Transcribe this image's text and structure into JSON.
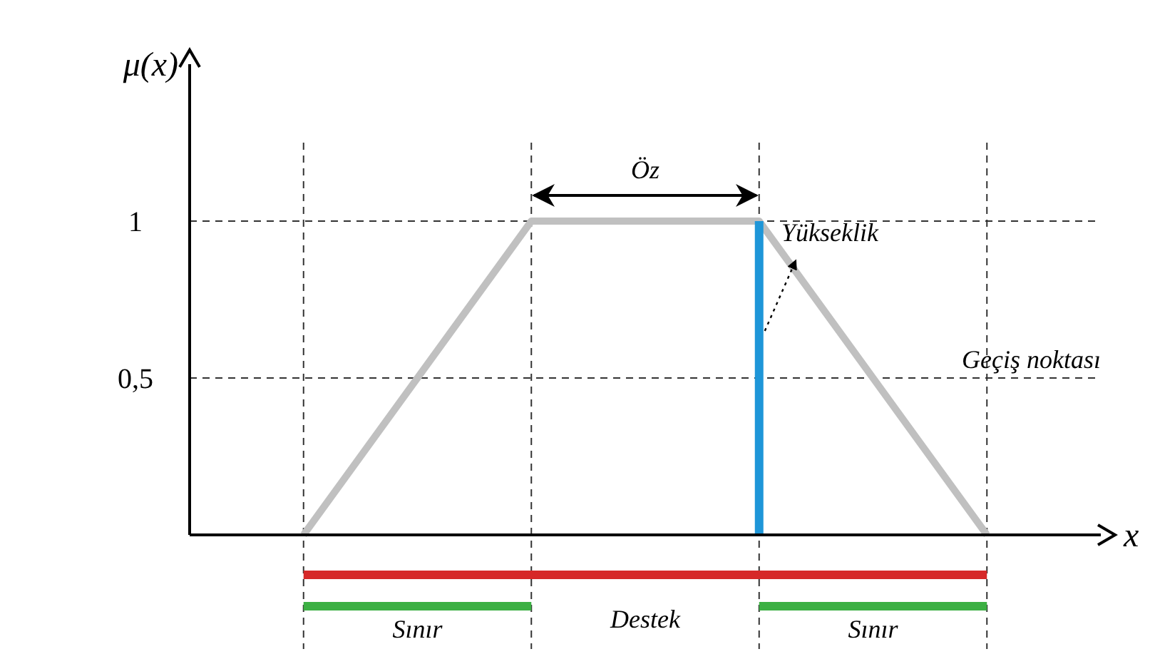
{
  "chart_data": {
    "type": "line",
    "xlabel": "x",
    "ylabel": "μ(x)",
    "categories": [
      null,
      null,
      null,
      null
    ],
    "series": [
      {
        "color": "#c0c0c0",
        "values": [
          0,
          1,
          1,
          0
        ]
      },
      {
        "type": "bar",
        "color": "#1e96d8",
        "values": [
          null,
          null,
          1,
          null
        ]
      }
    ],
    "ylim": [
      0,
      1.5
    ],
    "yticks": [
      {
        "value": 0.5,
        "label": "0,5"
      },
      {
        "value": 1,
        "label": "1"
      }
    ],
    "grid": "x",
    "ref_lines": [
      {
        "axis": "y",
        "value": 1,
        "line_style": "dashed"
      },
      {
        "axis": "y",
        "value": 0.5,
        "label": "Geçiş noktası",
        "line_style": "dashed"
      }
    ],
    "annotations": [
      "Öz",
      "Yükseklik",
      "Destek",
      "Sınır",
      "Sınır"
    ]
  }
}
